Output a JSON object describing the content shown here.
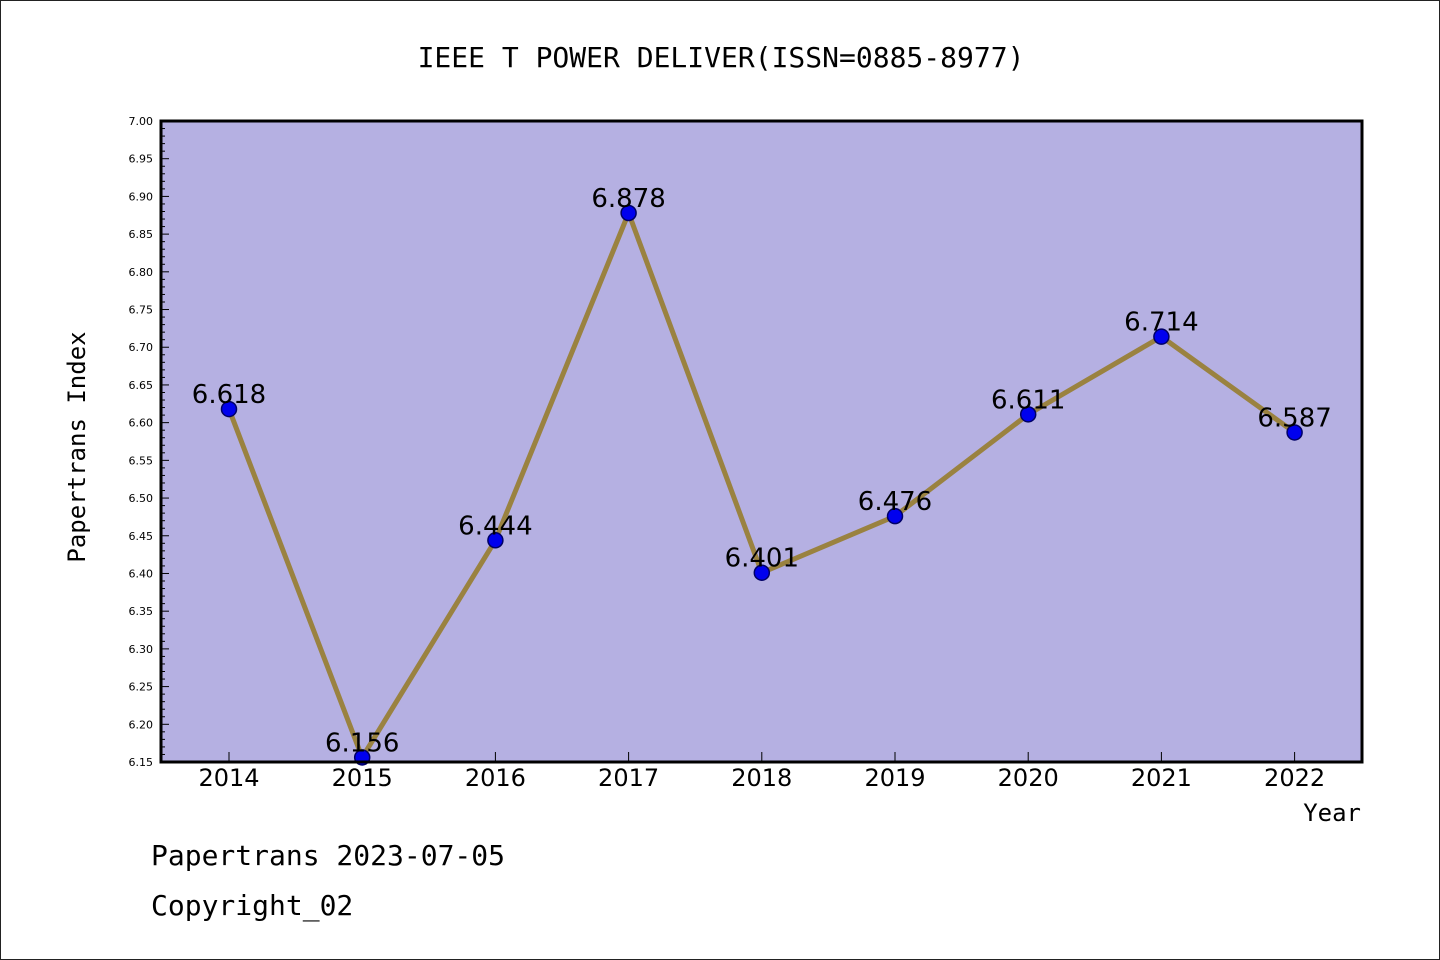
{
  "chart_data": {
    "type": "line",
    "title": "IEEE T POWER DELIVER(ISSN=0885-8977)",
    "xlabel": "Year",
    "ylabel": "Papertrans Index",
    "categories": [
      "2014",
      "2015",
      "2016",
      "2017",
      "2018",
      "2019",
      "2020",
      "2021",
      "2022"
    ],
    "series": [
      {
        "values": [
          6.618,
          6.156,
          6.444,
          6.878,
          6.401,
          6.476,
          6.611,
          6.714,
          6.587
        ]
      }
    ],
    "data_labels": [
      "6.618",
      "6.156",
      "6.444",
      "6.878",
      "6.401",
      "6.476",
      "6.611",
      "6.714",
      "6.587"
    ],
    "ylim": [
      6.15,
      7.0
    ],
    "ytick_labels": [
      "6.15",
      "6.20",
      "6.25",
      "6.30",
      "6.35",
      "6.40",
      "6.45",
      "6.50",
      "6.55",
      "6.60",
      "6.65",
      "6.70",
      "6.75",
      "6.80",
      "6.85",
      "6.90",
      "6.95",
      "7.00"
    ],
    "grid": false,
    "colors": {
      "plot_background": "#b5b0e2",
      "line": "#9a8240",
      "marker": "#0000ee",
      "marker_edge": "#000066"
    }
  },
  "footer": {
    "line1": "Papertrans 2023-07-05",
    "line2": "Copyright_02"
  }
}
